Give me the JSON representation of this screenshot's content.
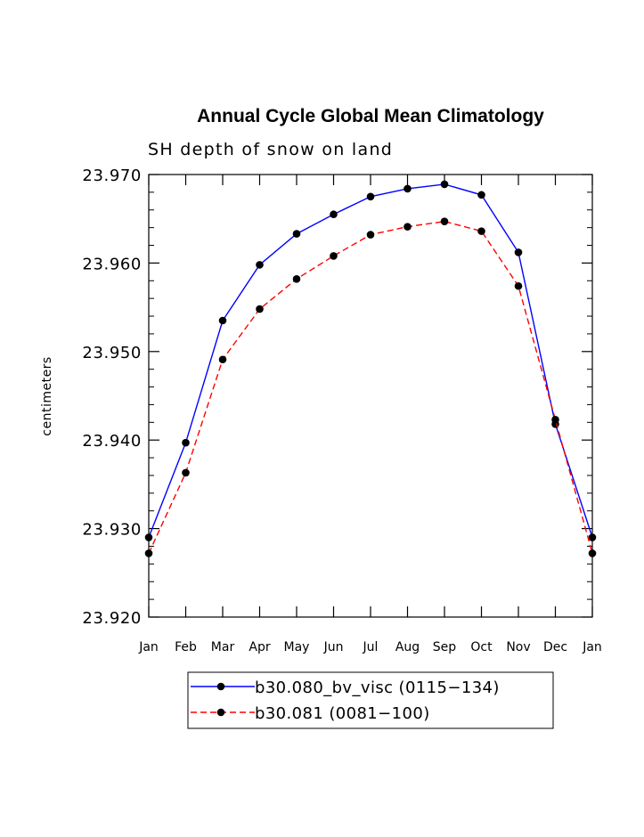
{
  "chart_data": {
    "type": "line",
    "title": "Annual Cycle Global Mean Climatology",
    "subtitle": "SH depth of snow on land",
    "xlabel": "",
    "ylabel": "centimeters",
    "categories": [
      "Jan",
      "Feb",
      "Mar",
      "Apr",
      "May",
      "Jun",
      "Jul",
      "Aug",
      "Sep",
      "Oct",
      "Nov",
      "Dec",
      "Jan"
    ],
    "ylim": [
      23.92,
      23.97
    ],
    "yticks": [
      23.92,
      23.93,
      23.94,
      23.95,
      23.96,
      23.97
    ],
    "ytick_labels": [
      "23.920",
      "23.930",
      "23.940",
      "23.950",
      "23.960",
      "23.970"
    ],
    "grid": false,
    "legend_position": "bottom-center",
    "series": [
      {
        "name": "b30.080_bv_visc (0115−134)",
        "color": "#0000ff",
        "line_style": "solid",
        "marker": "filled-circle",
        "values": [
          23.929,
          23.9397,
          23.9535,
          23.9598,
          23.9633,
          23.9655,
          23.9675,
          23.9684,
          23.9689,
          23.9677,
          23.9612,
          23.9418,
          23.929
        ]
      },
      {
        "name": "b30.081 (0081−100)",
        "color": "#ff0000",
        "line_style": "dashed",
        "marker": "filled-circle",
        "values": [
          23.9272,
          23.9363,
          23.9491,
          23.9548,
          23.9582,
          23.9608,
          23.9632,
          23.9641,
          23.9647,
          23.9636,
          23.9574,
          23.9423,
          23.9272
        ]
      }
    ]
  }
}
